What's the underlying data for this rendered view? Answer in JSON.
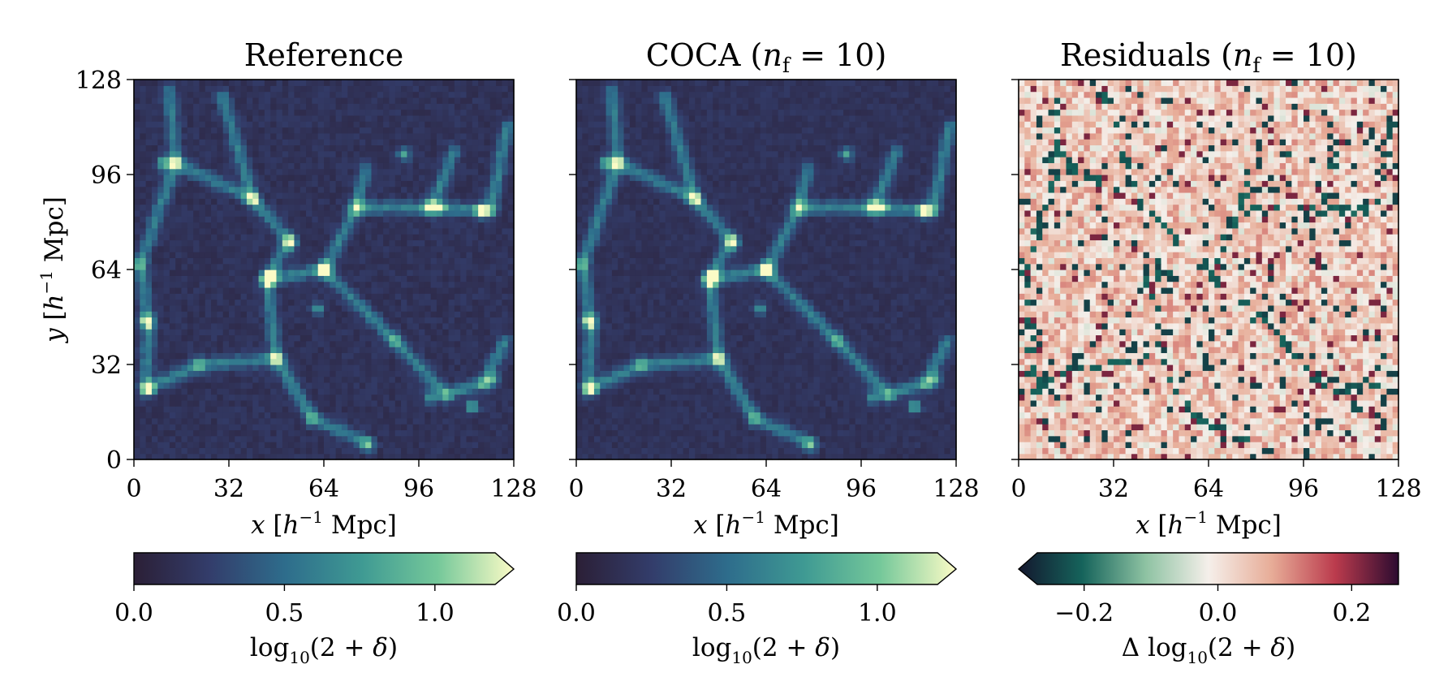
{
  "panels": [
    {
      "title": "Reference",
      "xlabel": "x [h⁻¹ Mpc]",
      "ylabel": "y [h⁻¹ Mpc]",
      "colorbar": {
        "label": "log₁₀(2 + δ)",
        "ticks": [
          "0.0",
          "0.5",
          "1.0"
        ],
        "tick_values": [
          0.0,
          0.5,
          1.0
        ],
        "range": [
          0.0,
          1.2
        ],
        "extend": "max",
        "colormap": "deep navy to teal to pale yellow",
        "colors": [
          "#2b1f36",
          "#333d6b",
          "#2e6d8c",
          "#3f9a93",
          "#75c89a",
          "#fbfbc6"
        ]
      }
    },
    {
      "title": "COCA (n_f = 10)",
      "xlabel": "x [h⁻¹ Mpc]",
      "ylabel": "",
      "colorbar": {
        "label": "log₁₀(2 + δ)",
        "ticks": [
          "0.0",
          "0.5",
          "1.0"
        ],
        "tick_values": [
          0.0,
          0.5,
          1.0
        ],
        "range": [
          0.0,
          1.2
        ],
        "extend": "max",
        "colormap": "deep navy to teal to pale yellow",
        "colors": [
          "#2b1f36",
          "#333d6b",
          "#2e6d8c",
          "#3f9a93",
          "#75c89a",
          "#fbfbc6"
        ]
      }
    },
    {
      "title": "Residuals (n_f = 10)",
      "xlabel": "x [h⁻¹ Mpc]",
      "ylabel": "",
      "colorbar": {
        "label": "Δ log₁₀(2 + δ)",
        "ticks": [
          "−0.2",
          "0.0",
          "0.2"
        ],
        "tick_values": [
          -0.2,
          0.0,
          0.2
        ],
        "range": [
          -0.27,
          0.27
        ],
        "extend": "min",
        "colormap": "diverging teal - white - dark red",
        "colors": [
          "#14172e",
          "#15635b",
          "#8dc2a2",
          "#f5efea",
          "#e7ac97",
          "#bb3b4d",
          "#2c0b30"
        ]
      }
    }
  ],
  "chart_data": [
    {
      "type": "heatmap",
      "title": "Reference",
      "xlabel": "x [h⁻¹ Mpc]",
      "ylabel": "y [h⁻¹ Mpc]",
      "xlim": [
        0,
        128
      ],
      "ylim": [
        0,
        128
      ],
      "xticks": [
        0,
        32,
        64,
        96,
        128
      ],
      "yticks": [
        0,
        32,
        64,
        96,
        128
      ],
      "grid_resolution": [
        64,
        64
      ],
      "value_range": [
        0.0,
        1.2
      ],
      "colorbar_label": "log₁₀(2 + δ)",
      "features": {
        "background_level": 0.1,
        "filaments": [
          {
            "from": [
              12,
              124
            ],
            "to": [
              14,
              100
            ]
          },
          {
            "from": [
              14,
              100
            ],
            "to": [
              2,
              66
            ]
          },
          {
            "from": [
              14,
              100
            ],
            "to": [
              40,
              88
            ]
          },
          {
            "from": [
              40,
              88
            ],
            "to": [
              52,
              74
            ]
          },
          {
            "from": [
              52,
              74
            ],
            "to": [
              45,
              61
            ]
          },
          {
            "from": [
              45,
              61
            ],
            "to": [
              48,
              34
            ]
          },
          {
            "from": [
              48,
              34
            ],
            "to": [
              60,
              14
            ]
          },
          {
            "from": [
              45,
              61
            ],
            "to": [
              64,
              64
            ]
          },
          {
            "from": [
              64,
              64
            ],
            "to": [
              75,
              85
            ]
          },
          {
            "from": [
              75,
              85
            ],
            "to": [
              100,
              85
            ]
          },
          {
            "from": [
              100,
              85
            ],
            "to": [
              120,
              84
            ]
          },
          {
            "from": [
              75,
              85
            ],
            "to": [
              78,
              98
            ]
          },
          {
            "from": [
              64,
              64
            ],
            "to": [
              88,
              40
            ]
          },
          {
            "from": [
              88,
              40
            ],
            "to": [
              105,
              22
            ]
          },
          {
            "from": [
              105,
              22
            ],
            "to": [
              118,
              26
            ]
          },
          {
            "from": [
              2,
              66
            ],
            "to": [
              5,
              46
            ]
          },
          {
            "from": [
              5,
              46
            ],
            "to": [
              4,
              24
            ]
          },
          {
            "from": [
              4,
              24
            ],
            "to": [
              22,
              32
            ]
          },
          {
            "from": [
              22,
              32
            ],
            "to": [
              48,
              34
            ]
          },
          {
            "from": [
              60,
              14
            ],
            "to": [
              78,
              6
            ]
          },
          {
            "from": [
              118,
              26
            ],
            "to": [
              125,
              40
            ]
          },
          {
            "from": [
              120,
              84
            ],
            "to": [
              126,
              112
            ]
          },
          {
            "from": [
              30,
              122
            ],
            "to": [
              40,
              88
            ]
          },
          {
            "from": [
              100,
              85
            ],
            "to": [
              108,
              104
            ]
          }
        ],
        "halos": [
          {
            "x": 10,
            "y": 100,
            "peak": 1.1
          },
          {
            "x": 46,
            "y": 61,
            "peak": 1.2
          },
          {
            "x": 64,
            "y": 64,
            "peak": 1.05
          },
          {
            "x": 53,
            "y": 73,
            "peak": 0.95
          },
          {
            "x": 117,
            "y": 84,
            "peak": 1.15
          },
          {
            "x": 103,
            "y": 85,
            "peak": 0.95
          },
          {
            "x": 91,
            "y": 103,
            "peak": 0.95
          },
          {
            "x": 5,
            "y": 24,
            "peak": 1.0
          },
          {
            "x": 114,
            "y": 18,
            "peak": 0.95
          },
          {
            "x": 79,
            "y": 5,
            "peak": 0.9
          },
          {
            "x": 100,
            "y": 21,
            "peak": 0.85
          },
          {
            "x": 4,
            "y": 47,
            "peak": 0.9
          },
          {
            "x": 62,
            "y": 51,
            "peak": 0.8
          },
          {
            "x": 121,
            "y": 27,
            "peak": 0.8
          }
        ]
      }
    },
    {
      "type": "heatmap",
      "title": "COCA (n_f = 10)",
      "xlabel": "x [h⁻¹ Mpc]",
      "xlim": [
        0,
        128
      ],
      "ylim": [
        0,
        128
      ],
      "xticks": [
        0,
        32,
        64,
        96,
        128
      ],
      "grid_resolution": [
        64,
        64
      ],
      "value_range": [
        0.0,
        1.2
      ],
      "colorbar_label": "log₁₀(2 + δ)",
      "note": "visually near-identical to Reference"
    },
    {
      "type": "heatmap",
      "title": "Residuals (n_f = 10)",
      "xlabel": "x [h⁻¹ Mpc]",
      "xlim": [
        0,
        128
      ],
      "ylim": [
        0,
        128
      ],
      "xticks": [
        0,
        32,
        64,
        96,
        128
      ],
      "grid_resolution": [
        64,
        64
      ],
      "value_range": [
        -0.27,
        0.27
      ],
      "colorbar_label": "Δ log₁₀(2 + δ)",
      "distribution": "mostly small positive (pale pink), scattered negative teal/dark pixels near structures"
    }
  ]
}
